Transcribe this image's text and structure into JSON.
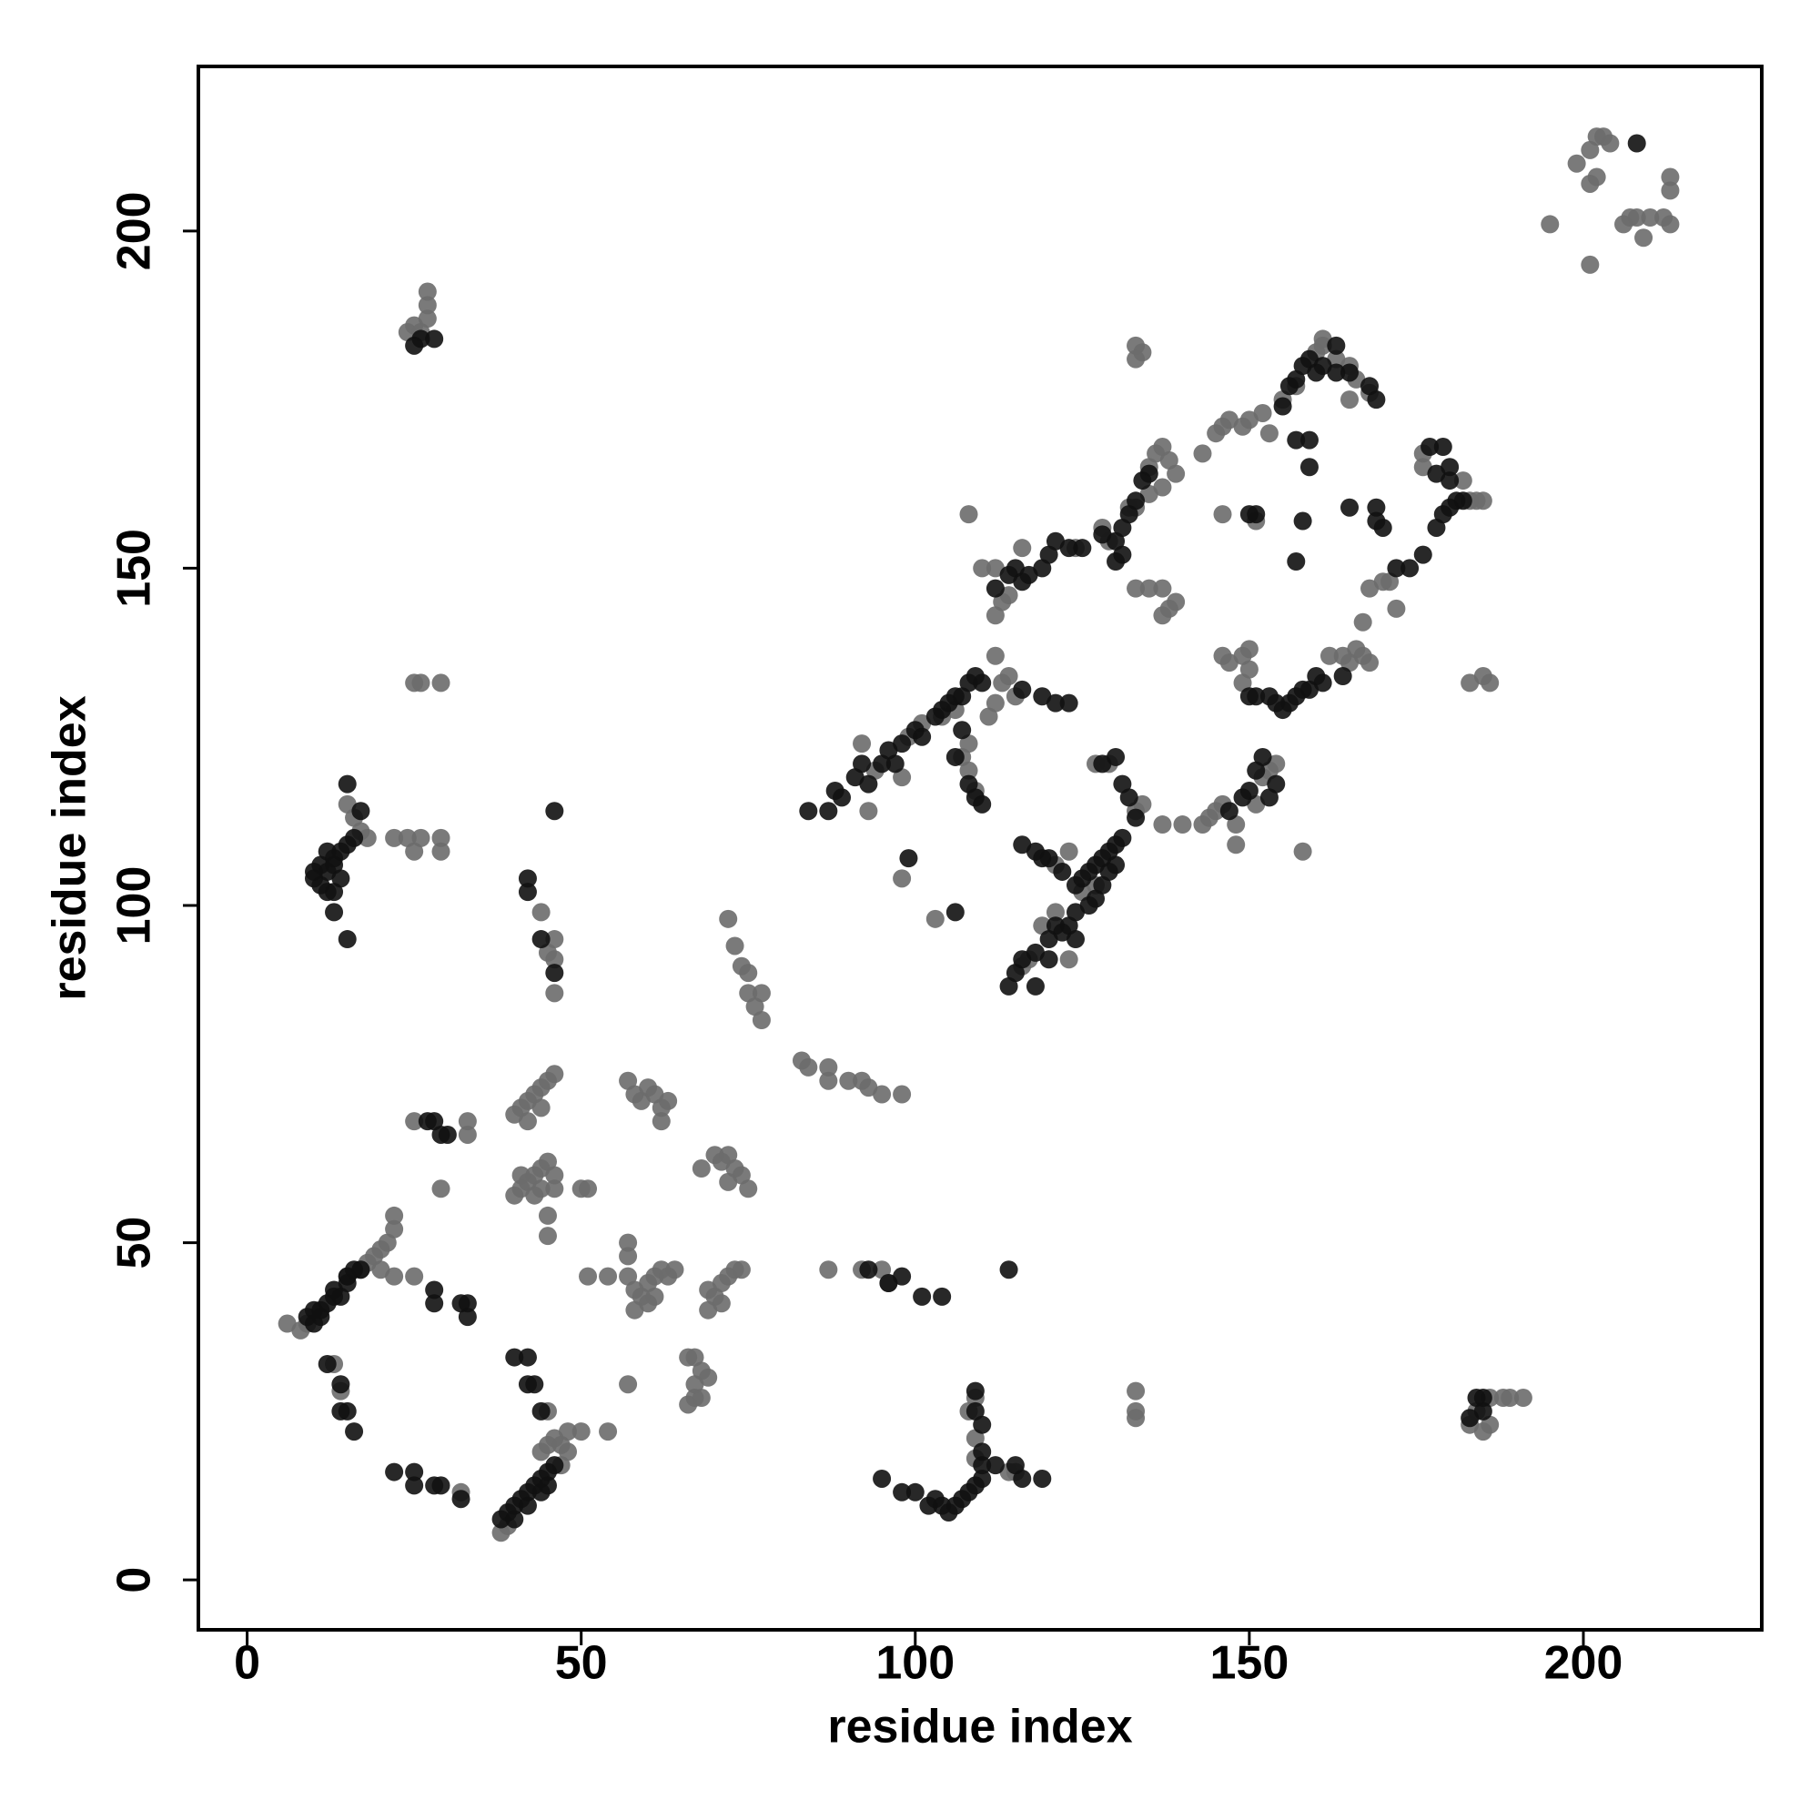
{
  "chart_data": {
    "type": "scatter",
    "xlabel": "residue index",
    "ylabel": "residue index",
    "xlim": [
      -7.3,
      226.7
    ],
    "ylim": [
      -7.4,
      224.4
    ],
    "xticks": [
      0,
      50,
      100,
      150,
      200
    ],
    "yticks": [
      0,
      50,
      100,
      150,
      200
    ],
    "series": [
      {
        "color": "#6b6b6b",
        "x": [
          6,
          8,
          9,
          15,
          17,
          18,
          19,
          20,
          21,
          22,
          22,
          20,
          22,
          25,
          32,
          13,
          14,
          38,
          39,
          44,
          45,
          46,
          47,
          48,
          48,
          50,
          54,
          47,
          45,
          45,
          45,
          40,
          41,
          42,
          43,
          44,
          45,
          46,
          41,
          43,
          44,
          46,
          50,
          51,
          40,
          41,
          42,
          43,
          44,
          45,
          46,
          42,
          44,
          25,
          33,
          33,
          29,
          22,
          24,
          25,
          26,
          29,
          29,
          15,
          16,
          17,
          18,
          45,
          46,
          46,
          46,
          44,
          25,
          26,
          29,
          24,
          25,
          26,
          27,
          27,
          27,
          57,
          58,
          59,
          60,
          61,
          62,
          63,
          62,
          57,
          57,
          57,
          58,
          59,
          60,
          61,
          62,
          63,
          64,
          58,
          60,
          61,
          51,
          54,
          57,
          66,
          67,
          68,
          69,
          66,
          67,
          68,
          67,
          68,
          70,
          71,
          72,
          73,
          74,
          75,
          72,
          70,
          69,
          71,
          72,
          73,
          74,
          69,
          71,
          72,
          73,
          74,
          75,
          75,
          76,
          77,
          77,
          83,
          84,
          87,
          87,
          90,
          92,
          93,
          95,
          98,
          87,
          92,
          95,
          96,
          109,
          108,
          109,
          109,
          114,
          115,
          133,
          133,
          133,
          183,
          185,
          186,
          186,
          188,
          189,
          191,
          184,
          140,
          143,
          144,
          145,
          146,
          148,
          148,
          151,
          152,
          153,
          154,
          158,
          98,
          103,
          107,
          108,
          109,
          111,
          112,
          113,
          114,
          115,
          112,
          112,
          114,
          116,
          106,
          104,
          98,
          93,
          94,
          92,
          99,
          101,
          108,
          121,
          119,
          117,
          116,
          123,
          125,
          127,
          121,
          123,
          129,
          127,
          133,
          134,
          137,
          113,
          110,
          108,
          112,
          124,
          128,
          129,
          132,
          133,
          135,
          136,
          137,
          138,
          139,
          143,
          145,
          146,
          147,
          149,
          150,
          152,
          153,
          155,
          157,
          160,
          161,
          161,
          163,
          165,
          165,
          166,
          168,
          135,
          137,
          133,
          135,
          137,
          139,
          137,
          138,
          146,
          147,
          149,
          150,
          150,
          149,
          162,
          164,
          165,
          166,
          167,
          168,
          167,
          168,
          170,
          171,
          172,
          176,
          176,
          182,
          183,
          184,
          185,
          183,
          185,
          186,
          133,
          134,
          133,
          195,
          199,
          201,
          201,
          202,
          203,
          204,
          202,
          201,
          206,
          207,
          208,
          209,
          210,
          212,
          213,
          213,
          213,
          151,
          146
        ],
        "y": [
          38,
          37,
          38,
          45,
          46,
          47,
          48,
          49,
          50,
          52,
          54,
          46,
          45,
          45,
          13,
          32,
          28,
          7,
          8,
          19,
          20,
          21,
          20,
          19,
          22,
          22,
          22,
          17,
          25,
          54,
          51,
          57,
          58,
          59,
          60,
          61,
          62,
          60,
          60,
          57,
          58,
          58,
          58,
          58,
          69,
          70,
          71,
          72,
          73,
          74,
          75,
          68,
          70,
          68,
          68,
          66,
          58,
          110,
          110,
          108,
          110,
          110,
          108,
          115,
          113,
          111,
          110,
          93,
          95,
          87,
          92,
          99,
          133,
          133,
          133,
          185,
          186,
          185,
          187,
          189,
          191,
          74,
          72,
          71,
          73,
          72,
          70,
          71,
          68,
          50,
          48,
          45,
          43,
          42,
          44,
          45,
          46,
          45,
          46,
          40,
          41,
          42,
          45,
          45,
          29,
          33,
          33,
          31,
          30,
          26,
          27,
          27,
          29,
          61,
          63,
          62,
          63,
          61,
          60,
          58,
          59,
          42,
          43,
          44,
          45,
          46,
          46,
          40,
          41,
          98,
          94,
          91,
          90,
          87,
          85,
          83,
          87,
          77,
          76,
          76,
          74,
          74,
          74,
          73,
          72,
          72,
          46,
          46,
          46,
          44,
          27,
          25,
          21,
          18,
          16,
          16,
          28,
          25,
          24,
          23,
          22,
          23,
          27,
          27,
          27,
          27,
          25,
          112,
          112,
          113,
          114,
          115,
          109,
          112,
          115,
          119,
          120,
          121,
          108,
          104,
          98,
          122,
          120,
          117,
          128,
          130,
          133,
          134,
          131,
          137,
          143,
          146,
          153,
          129,
          128,
          119,
          114,
          120,
          124,
          125,
          127,
          124,
          99,
          97,
          92,
          91,
          92,
          102,
          103,
          106,
          108,
          121,
          121,
          114,
          115,
          112,
          145,
          150,
          158,
          150,
          153,
          156,
          154,
          159,
          159,
          165,
          167,
          168,
          166,
          164,
          167,
          170,
          171,
          172,
          171,
          172,
          173,
          170,
          175,
          177,
          182,
          183,
          184,
          181,
          175,
          180,
          178,
          176,
          161,
          162,
          147,
          147,
          147,
          145,
          143,
          144,
          137,
          136,
          137,
          138,
          135,
          133,
          137,
          137,
          136,
          138,
          137,
          136,
          142,
          147,
          148,
          148,
          144,
          167,
          165,
          163,
          160,
          160,
          160,
          133,
          134,
          133,
          183,
          182,
          181,
          201,
          210,
          207,
          212,
          214,
          214,
          213,
          208,
          195,
          201,
          202,
          202,
          199,
          202,
          202,
          201,
          206,
          208,
          157,
          158
        ]
      },
      {
        "color": "#111111",
        "x": [
          9,
          10,
          11,
          11,
          12,
          13,
          13,
          14,
          15,
          15,
          16,
          17,
          10,
          12,
          14,
          14,
          15,
          16,
          22,
          25,
          25,
          28,
          29,
          32,
          28,
          28,
          32,
          33,
          33,
          38,
          39,
          40,
          40,
          41,
          42,
          42,
          43,
          44,
          44,
          45,
          46,
          45,
          40,
          42,
          42,
          43,
          44,
          27,
          29,
          30,
          28,
          10,
          10,
          11,
          12,
          12,
          13,
          13,
          14,
          15,
          16,
          12,
          11,
          13,
          15,
          15,
          17,
          14,
          13,
          42,
          42,
          44,
          46,
          46,
          26,
          28,
          25,
          95,
          98,
          100,
          102,
          103,
          104,
          105,
          106,
          107,
          108,
          109,
          110,
          110,
          109,
          110,
          110,
          109,
          115,
          119,
          116,
          112,
          114,
          96,
          101,
          104,
          93,
          98,
          184,
          185,
          183,
          185,
          84,
          87,
          88,
          89,
          91,
          92,
          93,
          95,
          96,
          97,
          98,
          100,
          101,
          103,
          104,
          105,
          106,
          107,
          108,
          109,
          110,
          107,
          106,
          108,
          109,
          110,
          116,
          119,
          121,
          123,
          116,
          118,
          120,
          122,
          124,
          125,
          126,
          127,
          128,
          129,
          130,
          131,
          130,
          129,
          128,
          127,
          126,
          124,
          123,
          122,
          120,
          118,
          116,
          115,
          114,
          118,
          120,
          121,
          124,
          119,
          128,
          130,
          131,
          132,
          133,
          106,
          99,
          112,
          114,
          115,
          116,
          117,
          119,
          120,
          121,
          123,
          125,
          128,
          130,
          131,
          132,
          133,
          134,
          130,
          131,
          135,
          156,
          157,
          158,
          159,
          160,
          161,
          155,
          154,
          150,
          151,
          153,
          152,
          151,
          150,
          149,
          147,
          153,
          154,
          164,
          170,
          174,
          172,
          176,
          178,
          179,
          180,
          181,
          182,
          178,
          180,
          177,
          179,
          180,
          158,
          150,
          151,
          157,
          165,
          169,
          169,
          155,
          156,
          157,
          158,
          159,
          160,
          161,
          163,
          165,
          168,
          169,
          157,
          159,
          159,
          163,
          208
        ],
        "y": [
          39,
          40,
          40,
          39,
          41,
          42,
          43,
          42,
          44,
          45,
          46,
          46,
          38,
          32,
          29,
          25,
          25,
          22,
          16,
          16,
          14,
          14,
          14,
          12,
          43,
          41,
          41,
          41,
          39,
          9,
          10,
          11,
          9,
          12,
          11,
          13,
          14,
          15,
          13,
          16,
          17,
          14,
          33,
          33,
          29,
          29,
          25,
          68,
          66,
          66,
          68,
          105,
          104,
          103,
          102,
          105,
          106,
          107,
          108,
          109,
          110,
          108,
          106,
          99,
          95,
          118,
          114,
          104,
          102,
          104,
          102,
          95,
          90,
          114,
          184,
          184,
          183,
          15,
          13,
          13,
          11,
          12,
          11,
          10,
          11,
          12,
          13,
          14,
          15,
          17,
          25,
          23,
          19,
          28,
          17,
          15,
          15,
          17,
          46,
          44,
          42,
          42,
          46,
          45,
          27,
          25,
          24,
          27,
          114,
          114,
          117,
          116,
          119,
          121,
          118,
          121,
          123,
          121,
          124,
          126,
          125,
          128,
          129,
          130,
          131,
          131,
          133,
          134,
          133,
          126,
          122,
          118,
          116,
          115,
          132,
          131,
          130,
          130,
          109,
          108,
          107,
          105,
          103,
          104,
          105,
          106,
          107,
          108,
          109,
          110,
          106,
          105,
          103,
          101,
          100,
          99,
          97,
          96,
          95,
          93,
          92,
          90,
          88,
          88,
          92,
          97,
          95,
          107,
          121,
          122,
          118,
          116,
          113,
          99,
          107,
          147,
          149,
          150,
          148,
          149,
          150,
          152,
          154,
          153,
          153,
          155,
          154,
          156,
          158,
          160,
          163,
          151,
          152,
          164,
          130,
          131,
          132,
          132,
          134,
          133,
          129,
          130,
          131,
          131,
          131,
          122,
          120,
          117,
          116,
          114,
          116,
          118,
          134,
          156,
          150,
          150,
          152,
          156,
          158,
          159,
          160,
          160,
          164,
          165,
          168,
          168,
          163,
          157,
          158,
          158,
          151,
          159,
          159,
          157,
          174,
          177,
          178,
          180,
          181,
          179,
          180,
          179,
          179,
          177,
          175,
          169,
          169,
          165,
          183,
          213
        ]
      }
    ]
  }
}
